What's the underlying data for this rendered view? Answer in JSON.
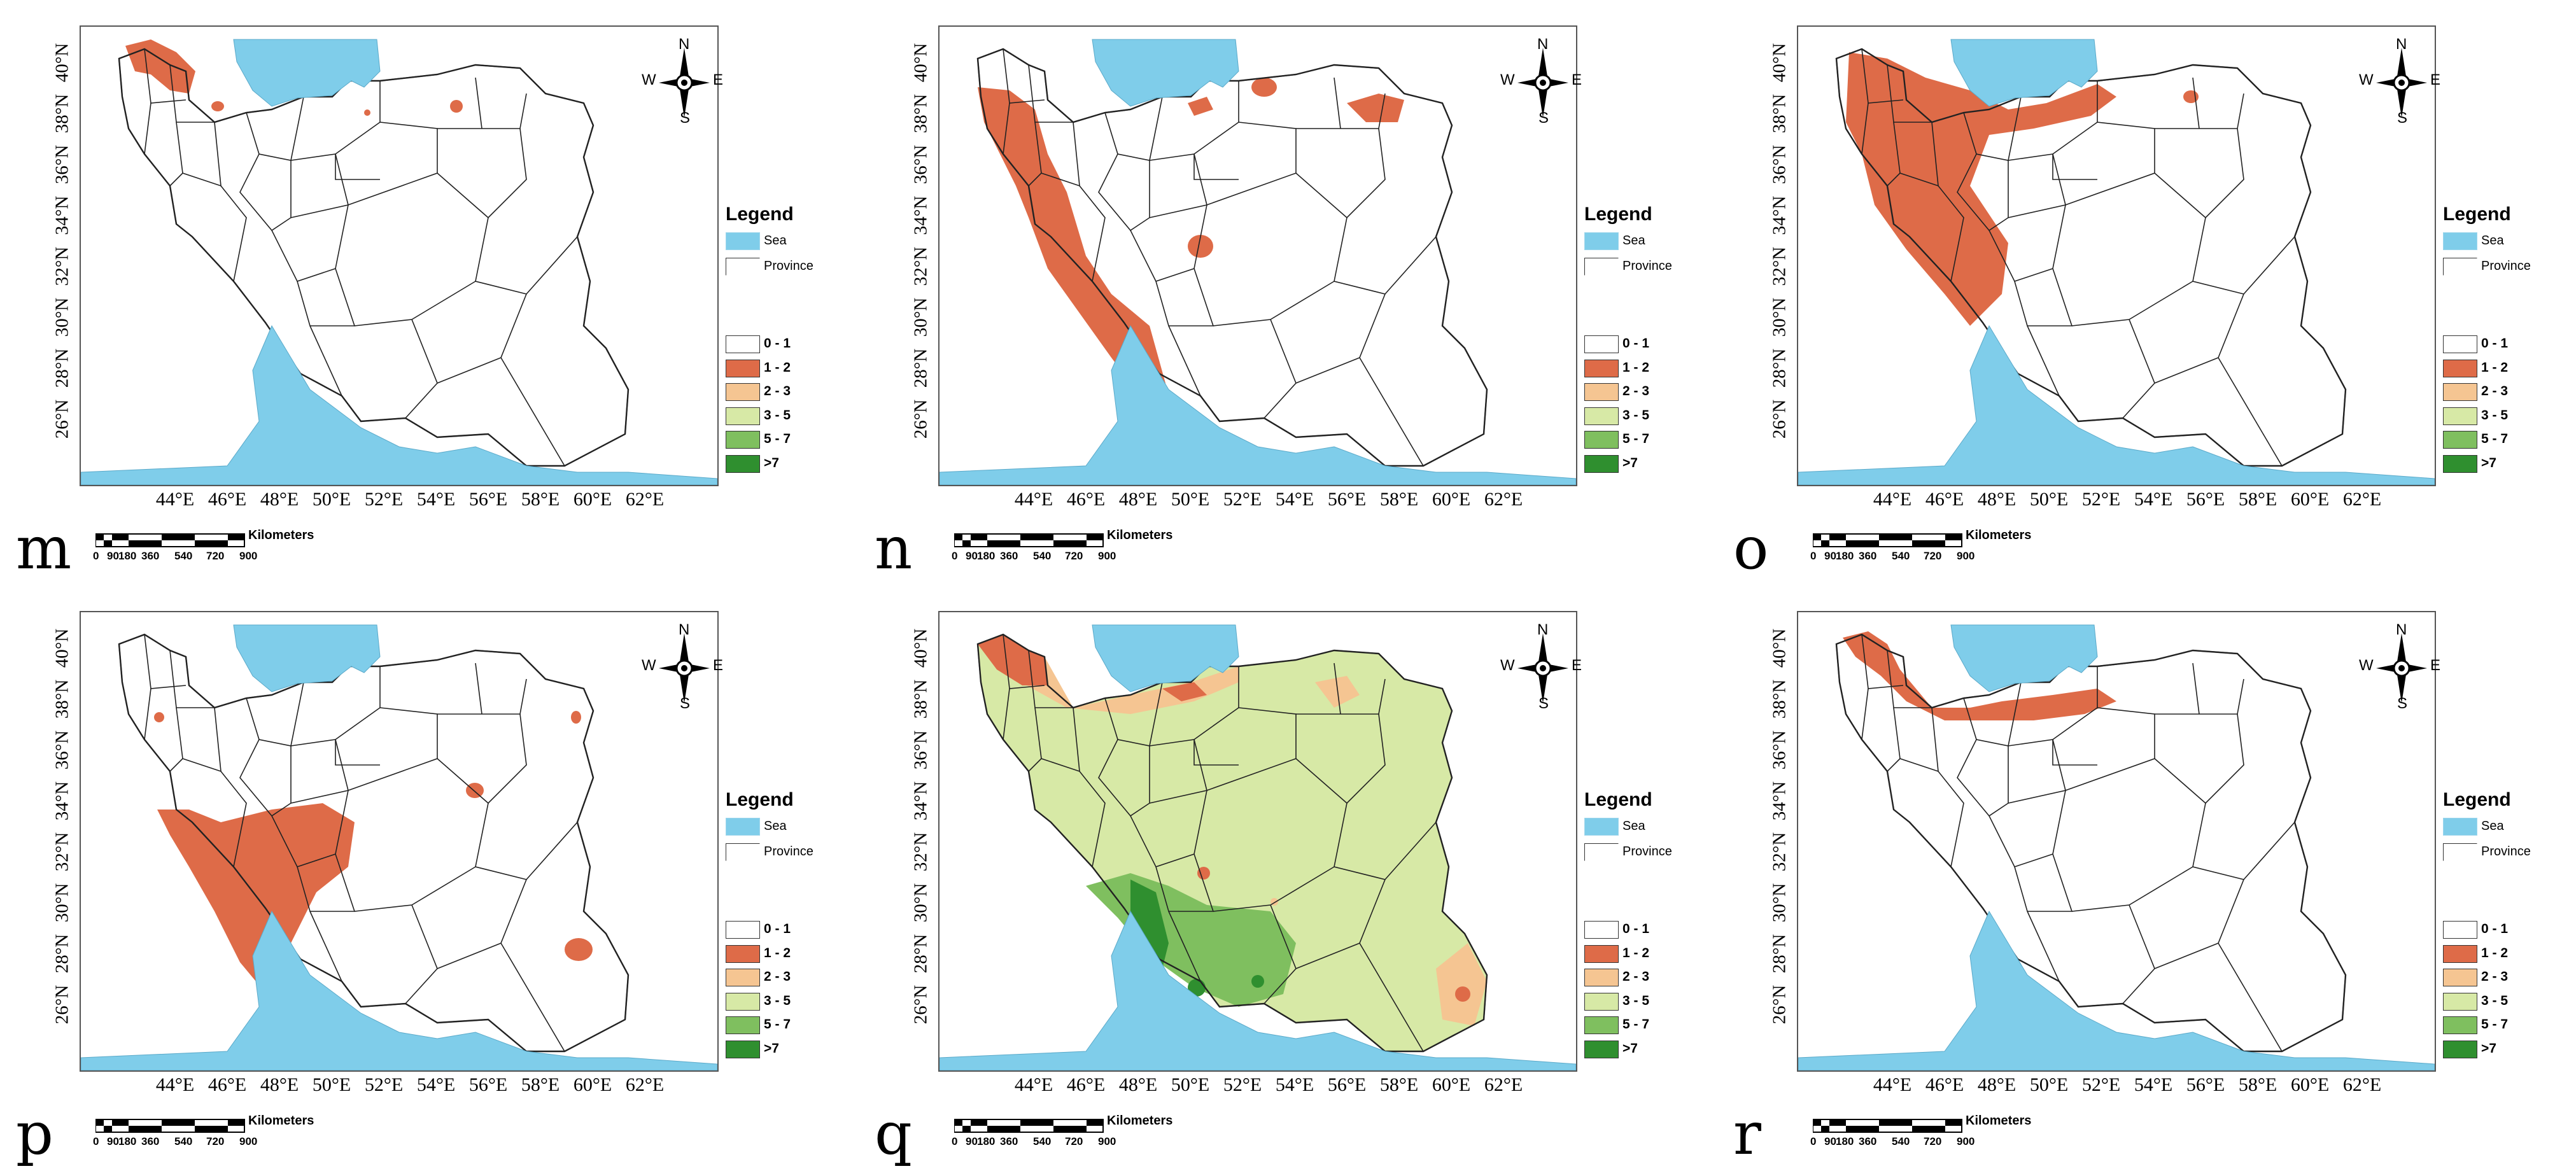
{
  "figure": {
    "latitude_labels": [
      "40°N",
      "38°N",
      "36°N",
      "34°N",
      "32°N",
      "30°N",
      "28°N",
      "26°N"
    ],
    "longitude_labels": [
      "44°E",
      "46°E",
      "48°E",
      "50°E",
      "52°E",
      "54°E",
      "56°E",
      "58°E",
      "60°E",
      "62°E"
    ],
    "compass": {
      "north": "N",
      "south": "S",
      "east": "E",
      "west": "W"
    },
    "scale_bar": {
      "title": "Kilometers",
      "ticks": [
        "0",
        "90",
        "180",
        "360",
        "540",
        "720",
        "900"
      ]
    },
    "legend": {
      "title": "Legend",
      "layers": [
        {
          "label": "Sea",
          "color": "#7fcdea"
        },
        {
          "label": "Province",
          "color": "#ffffff"
        }
      ],
      "classes": [
        {
          "label": "0 - 1",
          "color": "#ffffff"
        },
        {
          "label": "1 - 2",
          "color": "#de6b48"
        },
        {
          "label": "2 - 3",
          "color": "#f5c592"
        },
        {
          "label": "3 - 5",
          "color": "#d7e9a6"
        },
        {
          "label": "5 - 7",
          "color": "#7fbf5f"
        },
        {
          "label": ">7",
          "color": "#2f8f2f"
        }
      ]
    },
    "panels": [
      {
        "label": "m",
        "dominant_class": "1 - 2",
        "zones": [
          "northwest (Ardabil/East Azerbaijan)",
          "small patches near Caspian east",
          "northeast point"
        ]
      },
      {
        "label": "n",
        "dominant_class": "1 - 2",
        "zones": [
          "western Zagros belt",
          "central Iran patch",
          "northeast patch"
        ]
      },
      {
        "label": "o",
        "dominant_class": "1 - 2",
        "zones": [
          "northwest and western Iran",
          "south Caspian coast",
          "northeast point"
        ]
      },
      {
        "label": "p",
        "dominant_class": "1 - 2",
        "zones": [
          "southwest Iran",
          "small eastern patches"
        ]
      },
      {
        "label": "q",
        "dominant_class": "3 - 5",
        "zones": [
          "north-west 1-2",
          "north 2-3",
          "central 3-5",
          "south 5-7 and >7"
        ]
      },
      {
        "label": "r",
        "dominant_class": "1 - 2",
        "zones": [
          "south Caspian coast",
          "northwest"
        ]
      }
    ]
  }
}
